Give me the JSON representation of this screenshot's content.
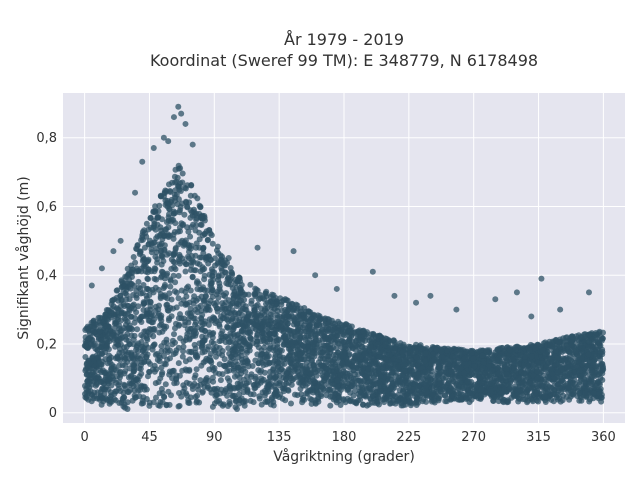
{
  "chart_data": {
    "type": "scatter",
    "title_lines": [
      "År 1979 - 2019",
      "Koordinat (Sweref 99 TM): E 348779, N 6178498"
    ],
    "xlabel": "Vågriktning (grader)",
    "ylabel": "Signifikant våghöjd (m)",
    "xlim": [
      -15,
      375
    ],
    "ylim": [
      -0.03,
      0.93
    ],
    "xticks": [
      0,
      45,
      90,
      135,
      180,
      225,
      270,
      315,
      360
    ],
    "yticks": [
      0,
      0.2,
      0.4,
      0.6,
      0.8
    ],
    "ytick_labels": [
      "0",
      "0,2",
      "0,4",
      "0,6",
      "0,8"
    ],
    "grid": true,
    "colors": {
      "background": "#e5e5ef",
      "grid": "#ffffff",
      "point": "#2d5166"
    },
    "envelope_x": [
      0,
      15,
      30,
      45,
      55,
      65,
      75,
      90,
      105,
      120,
      135,
      150,
      165,
      180,
      200,
      225,
      250,
      270,
      290,
      315,
      335,
      360
    ],
    "envelope_upper": [
      0.25,
      0.3,
      0.42,
      0.58,
      0.66,
      0.72,
      0.66,
      0.5,
      0.4,
      0.36,
      0.34,
      0.31,
      0.28,
      0.26,
      0.23,
      0.2,
      0.19,
      0.18,
      0.19,
      0.2,
      0.22,
      0.24
    ],
    "envelope_lower": [
      0.03,
      0.02,
      0.01,
      0.01,
      0.01,
      0.01,
      0.01,
      0.01,
      0.01,
      0.02,
      0.02,
      0.02,
      0.02,
      0.02,
      0.02,
      0.02,
      0.03,
      0.03,
      0.03,
      0.03,
      0.03,
      0.03
    ],
    "notable_points": [
      [
        65,
        0.89
      ],
      [
        67,
        0.87
      ],
      [
        62,
        0.86
      ],
      [
        70,
        0.84
      ],
      [
        55,
        0.8
      ],
      [
        58,
        0.79
      ],
      [
        48,
        0.77
      ],
      [
        75,
        0.78
      ],
      [
        40,
        0.73
      ],
      [
        35,
        0.64
      ],
      [
        120,
        0.48
      ],
      [
        145,
        0.47
      ],
      [
        200,
        0.41
      ],
      [
        317,
        0.39
      ],
      [
        350,
        0.35
      ],
      [
        300,
        0.35
      ],
      [
        285,
        0.33
      ],
      [
        240,
        0.34
      ],
      [
        258,
        0.3
      ],
      [
        310,
        0.28
      ],
      [
        330,
        0.3
      ],
      [
        215,
        0.34
      ],
      [
        5,
        0.37
      ],
      [
        12,
        0.42
      ],
      [
        20,
        0.47
      ],
      [
        25,
        0.5
      ],
      [
        100,
        0.45
      ],
      [
        160,
        0.4
      ],
      [
        175,
        0.36
      ],
      [
        230,
        0.32
      ]
    ]
  }
}
